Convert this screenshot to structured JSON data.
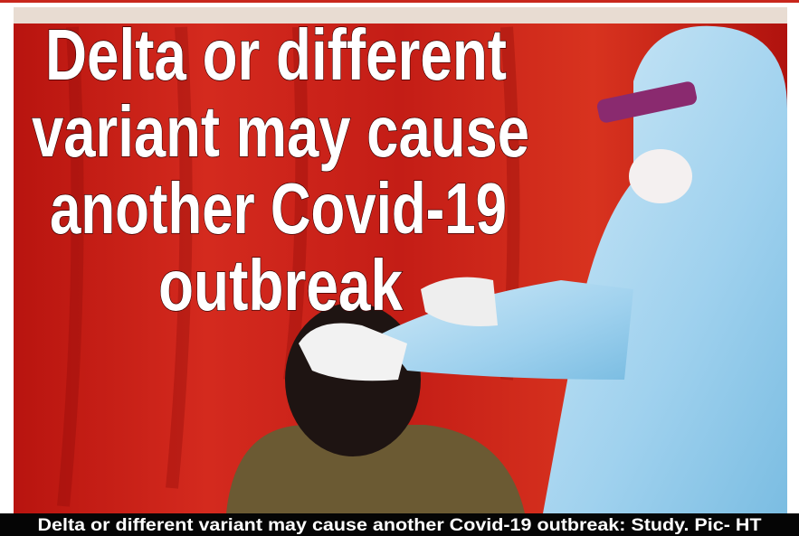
{
  "headline": {
    "lines": [
      "Delta or different",
      "variant may cause",
      "another Covid-19",
      "outbreak"
    ]
  },
  "caption": "Delta or different variant may cause another Covid-19 outbreak: Study. Pic- HT"
}
